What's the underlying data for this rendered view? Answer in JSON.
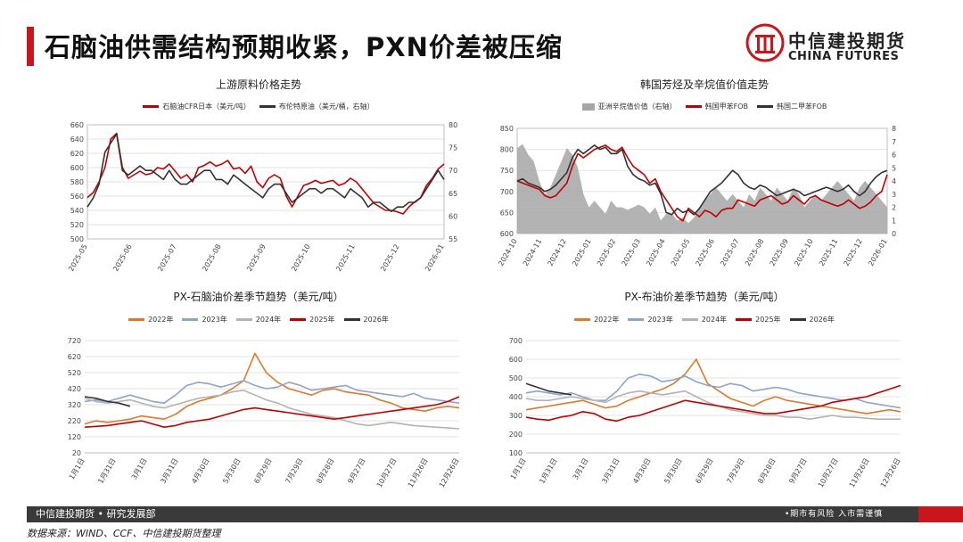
{
  "header": {
    "title": "石脑油供需结构预期收紧，PXN价差被压缩",
    "logo_cn": "中信建投期货",
    "logo_en": "CHINA FUTURES"
  },
  "footer": {
    "left": "中信建投期货 • 研究发展部",
    "right": "•期市有风险  入市需谨慎",
    "source": "数据来源：WIND、CCF、中信建投期货整理"
  },
  "colors": {
    "red": "#c00000",
    "black": "#333333",
    "gray": "#a6a6a6",
    "orange": "#d97b2b",
    "blue": "#8ea4c8",
    "lightgray": "#b3b3b3"
  },
  "chart_data": [
    {
      "type": "line",
      "title": "上游原料价格走势",
      "legend": [
        "石脑油CFR日本（美元/吨）",
        "布伦特原油（美元/桶，右轴）"
      ],
      "x_ticks": [
        "2025-05",
        "2025-06",
        "2025-07",
        "2025-08",
        "2025-09",
        "2025-10",
        "2025-11",
        "2025-12",
        "2026-01"
      ],
      "ylim": [
        500,
        660
      ],
      "yticks": [
        500,
        520,
        540,
        560,
        580,
        600,
        620,
        640,
        660
      ],
      "y2lim": [
        55,
        80
      ],
      "y2ticks": [
        55,
        60,
        65,
        70,
        75,
        80
      ],
      "series": [
        {
          "name": "石脑油CFR日本（美元/吨）",
          "axis": "left",
          "values": [
            558,
            565,
            580,
            600,
            640,
            648,
            600,
            585,
            590,
            595,
            590,
            592,
            600,
            598,
            605,
            595,
            585,
            590,
            580,
            600,
            603,
            608,
            602,
            605,
            610,
            598,
            600,
            592,
            602,
            580,
            572,
            585,
            590,
            585,
            560,
            545,
            560,
            575,
            578,
            582,
            578,
            580,
            582,
            575,
            578,
            585,
            580,
            570,
            560,
            550,
            545,
            540,
            540,
            538,
            535,
            545,
            552,
            558,
            575,
            585,
            598,
            605
          ]
        },
        {
          "name": "布伦特原油（美元/桶，右轴）",
          "axis": "right",
          "values": [
            62,
            64,
            67,
            74,
            76,
            78,
            70,
            69,
            70,
            71,
            70,
            70,
            69,
            68,
            70,
            68,
            67,
            67,
            68,
            69,
            70,
            70,
            68,
            68,
            67,
            69,
            68,
            67,
            66,
            65,
            64,
            66,
            67,
            67,
            65,
            63,
            64,
            65,
            66,
            66,
            65,
            66,
            66,
            65,
            64,
            66,
            65,
            64,
            62,
            63,
            63,
            62,
            61,
            62,
            62,
            63,
            63,
            64,
            66,
            68,
            70,
            68
          ]
        }
      ]
    },
    {
      "type": "line",
      "title": "韩国芳烃及辛烷值价值走势",
      "legend": [
        "亚洲辛烷值价值（右轴）",
        "韩国甲苯FOB",
        "韩国二甲苯FOB"
      ],
      "x_ticks": [
        "2024-10",
        "2024-11",
        "2024-12",
        "2025-01",
        "2025-02",
        "2025-03",
        "2025-04",
        "2025-05",
        "2025-06",
        "2025-07",
        "2025-08",
        "2025-09",
        "2025-10",
        "2025-11",
        "2025-12",
        "2026-01"
      ],
      "ylim": [
        600,
        850
      ],
      "yticks": [
        600,
        650,
        700,
        750,
        800,
        850
      ],
      "y2lim": [
        0,
        8
      ],
      "y2ticks": [
        0,
        1,
        2,
        3,
        4,
        5,
        6,
        7,
        8
      ],
      "series": [
        {
          "name": "亚洲辛烷值价值（右轴）",
          "axis": "right",
          "style": "area",
          "values": [
            6.5,
            6.8,
            6.0,
            5.5,
            4.0,
            3.0,
            3.5,
            4.5,
            5.5,
            6.5,
            6.0,
            5.0,
            3.0,
            2.0,
            2.5,
            2.0,
            1.5,
            2.5,
            2.0,
            2.0,
            1.8,
            2.0,
            2.2,
            2.0,
            1.5,
            2.0,
            1.0,
            1.5,
            1.5,
            1.0,
            1.2,
            0.8,
            1.2,
            2.0,
            2.5,
            3.0,
            3.5,
            3.0,
            2.5,
            3.0,
            2.5,
            2.0,
            3.0,
            2.5,
            3.5,
            3.0,
            2.5,
            3.5,
            3.0,
            2.5,
            3.5,
            3.0,
            2.0,
            2.5,
            3.0,
            2.5,
            3.0,
            3.5,
            4.0,
            3.5,
            3.0,
            2.5,
            3.5,
            4.0,
            3.5,
            3.0,
            2.5,
            2.0
          ]
        },
        {
          "name": "韩国甲苯FOB",
          "axis": "left",
          "values": [
            725,
            720,
            715,
            710,
            705,
            690,
            685,
            690,
            705,
            720,
            760,
            790,
            780,
            790,
            800,
            805,
            810,
            800,
            795,
            805,
            780,
            760,
            750,
            740,
            720,
            730,
            700,
            680,
            660,
            640,
            630,
            660,
            650,
            640,
            655,
            650,
            640,
            655,
            660,
            660,
            680,
            675,
            670,
            665,
            680,
            685,
            690,
            680,
            670,
            675,
            690,
            680,
            670,
            685,
            690,
            680,
            675,
            670,
            665,
            670,
            680,
            670,
            660,
            665,
            675,
            690,
            700,
            740
          ]
        },
        {
          "name": "韩国二甲苯FOB",
          "axis": "left",
          "values": [
            725,
            730,
            720,
            715,
            710,
            700,
            705,
            715,
            730,
            745,
            780,
            800,
            790,
            800,
            810,
            800,
            805,
            790,
            790,
            800,
            760,
            740,
            730,
            725,
            715,
            720,
            695,
            650,
            645,
            660,
            650,
            655,
            645,
            660,
            680,
            700,
            710,
            720,
            735,
            750,
            740,
            720,
            710,
            705,
            715,
            710,
            700,
            690,
            695,
            700,
            705,
            700,
            690,
            695,
            700,
            705,
            710,
            705,
            700,
            705,
            715,
            700,
            690,
            700,
            720,
            735,
            745,
            750
          ]
        }
      ]
    },
    {
      "type": "line",
      "title": "PX-石脑油价差季节趋势（美元/吨）",
      "legend": [
        "2022年",
        "2023年",
        "2024年",
        "2025年",
        "2026年"
      ],
      "x_ticks": [
        "1月1日",
        "1月31日",
        "3月1日",
        "3月31日",
        "4月30日",
        "5月30日",
        "6月29日",
        "7月29日",
        "8月28日",
        "9月27日",
        "10月27日",
        "11月26日",
        "12月26日"
      ],
      "ylim": [
        20,
        720
      ],
      "yticks": [
        20,
        120,
        220,
        320,
        420,
        520,
        620,
        720
      ],
      "series": [
        {
          "name": "2022年",
          "values": [
            200,
            220,
            210,
            220,
            230,
            250,
            240,
            230,
            260,
            310,
            340,
            360,
            380,
            420,
            470,
            640,
            520,
            460,
            420,
            400,
            380,
            410,
            420,
            400,
            390,
            380,
            350,
            330,
            300,
            290,
            280,
            300,
            310,
            300
          ]
        },
        {
          "name": "2023年",
          "values": [
            340,
            350,
            340,
            360,
            380,
            360,
            340,
            330,
            380,
            440,
            460,
            450,
            430,
            450,
            470,
            440,
            420,
            430,
            460,
            440,
            410,
            420,
            430,
            440,
            410,
            400,
            390,
            380,
            370,
            390,
            360,
            350,
            340,
            330
          ]
        },
        {
          "name": "2024年",
          "values": [
            360,
            340,
            330,
            340,
            350,
            330,
            310,
            300,
            320,
            340,
            360,
            370,
            380,
            400,
            410,
            380,
            350,
            330,
            300,
            280,
            260,
            250,
            240,
            220,
            200,
            190,
            200,
            210,
            200,
            190,
            185,
            180,
            175,
            170
          ]
        },
        {
          "name": "2025年",
          "values": [
            180,
            185,
            190,
            200,
            210,
            220,
            200,
            180,
            190,
            210,
            220,
            230,
            250,
            270,
            290,
            300,
            290,
            280,
            270,
            260,
            250,
            240,
            230,
            240,
            250,
            260,
            270,
            280,
            290,
            300,
            310,
            320,
            340,
            370
          ]
        },
        {
          "name": "2026年",
          "values": [
            370,
            360,
            340,
            330,
            310
          ]
        }
      ]
    },
    {
      "type": "line",
      "title": "PX-布油价差季节趋势（美元/吨）",
      "legend": [
        "2022年",
        "2023年",
        "2024年",
        "2025年",
        "2026年"
      ],
      "x_ticks": [
        "1月1日",
        "1月31日",
        "3月1日",
        "3月31日",
        "4月30日",
        "5月30日",
        "6月29日",
        "7月29日",
        "8月28日",
        "9月27日",
        "10月27日",
        "11月26日",
        "12月26日"
      ],
      "ylim": [
        100,
        700
      ],
      "yticks": [
        100,
        200,
        300,
        400,
        500,
        600,
        700
      ],
      "series": [
        {
          "name": "2022年",
          "values": [
            330,
            340,
            350,
            360,
            370,
            380,
            360,
            340,
            350,
            380,
            400,
            420,
            440,
            470,
            520,
            600,
            470,
            430,
            390,
            370,
            350,
            380,
            400,
            380,
            370,
            360,
            350,
            340,
            330,
            320,
            310,
            320,
            330,
            320
          ]
        },
        {
          "name": "2023年",
          "values": [
            420,
            430,
            420,
            410,
            420,
            400,
            380,
            380,
            430,
            500,
            520,
            510,
            480,
            490,
            510,
            480,
            460,
            450,
            470,
            460,
            430,
            440,
            450,
            440,
            420,
            410,
            400,
            390,
            380,
            390,
            370,
            360,
            350,
            340
          ]
        },
        {
          "name": "2024年",
          "values": [
            390,
            380,
            380,
            390,
            400,
            390,
            380,
            370,
            400,
            420,
            430,
            420,
            410,
            420,
            430,
            400,
            370,
            350,
            330,
            320,
            310,
            300,
            300,
            290,
            290,
            280,
            290,
            300,
            290,
            290,
            285,
            280,
            280,
            280
          ]
        },
        {
          "name": "2025年",
          "values": [
            290,
            280,
            275,
            290,
            300,
            320,
            310,
            280,
            270,
            290,
            300,
            320,
            340,
            360,
            380,
            370,
            360,
            350,
            340,
            330,
            320,
            310,
            310,
            320,
            330,
            340,
            350,
            370,
            380,
            390,
            400,
            420,
            440,
            460
          ]
        },
        {
          "name": "2026年",
          "values": [
            470,
            450,
            430,
            420,
            410
          ]
        }
      ]
    }
  ]
}
